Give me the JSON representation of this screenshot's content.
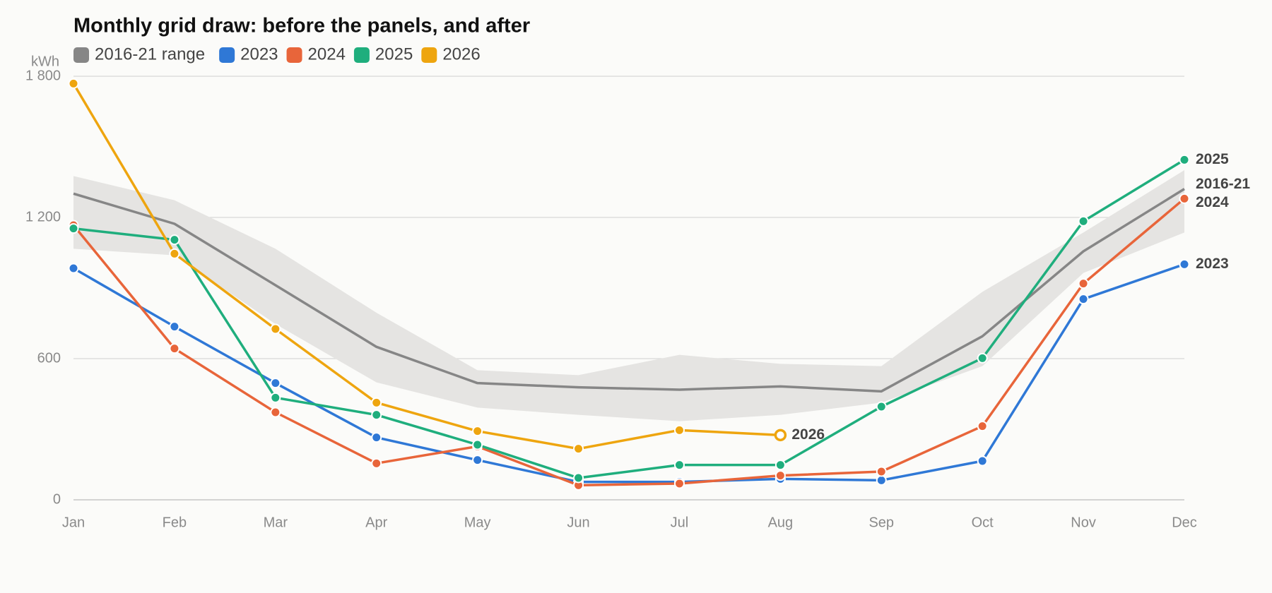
{
  "chart_data": {
    "type": "line",
    "title": "Monthly grid draw: before the panels, and after",
    "y_label": "kWh",
    "categories": [
      "Jan",
      "Feb",
      "Mar",
      "Apr",
      "May",
      "Jun",
      "Jul",
      "Aug",
      "Sep",
      "Oct",
      "Nov",
      "Dec"
    ],
    "ylim": [
      0,
      1800
    ],
    "yticks": [
      0,
      600,
      {
        "value": 1200,
        "label": "1 200"
      },
      {
        "value": 1800,
        "label": "1 800"
      }
    ],
    "grid": true,
    "range": {
      "name": "2016-21 range",
      "end_label": "2016-21",
      "color": "#868686",
      "band_color": "#e5e4e2",
      "upper": [
        1376,
        1273,
        1067,
        795,
        551,
        530,
        616,
        578,
        568,
        884,
        1136,
        1401
      ],
      "lower": [
        1067,
        1039,
        747,
        499,
        392,
        361,
        334,
        361,
        413,
        568,
        964,
        1136
      ],
      "median": [
        1301,
        1173,
        912,
        650,
        496,
        478,
        468,
        482,
        461,
        695,
        1056,
        1321
      ]
    },
    "series": [
      {
        "name": "2023",
        "color": "#2f78d6",
        "values": [
          984,
          736,
          496,
          265,
          169,
          76,
          76,
          89,
          83,
          165,
          853,
          1001
        ]
      },
      {
        "name": "2024",
        "color": "#e8653a",
        "values": [
          1167,
          643,
          372,
          155,
          227,
          62,
          69,
          103,
          120,
          313,
          919,
          1280
        ]
      },
      {
        "name": "2025",
        "color": "#1fae7d",
        "values": [
          1153,
          1105,
          434,
          361,
          234,
          93,
          148,
          148,
          396,
          602,
          1184,
          1445
        ]
      },
      {
        "name": "2026",
        "color": "#eea50f",
        "values": [
          1769,
          1046,
          726,
          413,
          292,
          217,
          296,
          275,
          null,
          null,
          null,
          null
        ]
      }
    ]
  }
}
